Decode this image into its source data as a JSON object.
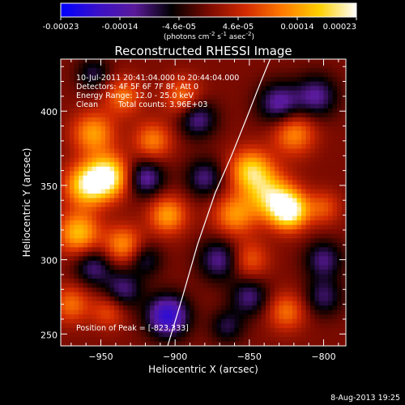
{
  "colorbar": {
    "tick_labels": [
      "-0.00023",
      "-0.00014",
      "-4.6e-05",
      "4.6e-05",
      "0.00014",
      "0.00023"
    ],
    "unit_label_main": "(photons cm",
    "unit_exp1": "-2",
    "unit_mid": " s",
    "unit_exp2": "-1",
    "unit_tail": " asec",
    "unit_exp3": "-2",
    "unit_close": ")",
    "colors": [
      "#0000ff",
      "#3a10c8",
      "#5a1a9a",
      "#000000",
      "#7a0a00",
      "#d22a00",
      "#ff7a00",
      "#ffd000",
      "#ffffff"
    ]
  },
  "annotations": {
    "time_range": "10-Jul-2011 20:41:04.000 to 20:44:04.000",
    "detectors": "Detectors: 4F 5F 6F 7F 8F, Att 0",
    "energy": "Energy Range: 12.0 - 25.0 keV",
    "clean": "Clean",
    "counts": "Total counts: 3.96E+03",
    "peak": "Position of Peak = [-823,333]"
  },
  "footer": {
    "date": "8-Aug-2013 19:25"
  },
  "chart_data": {
    "type": "heatmap",
    "title": "Reconstructed RHESSI Image",
    "xlabel": "Heliocentric X (arcsec)",
    "ylabel": "Heliocentric Y (arcsec)",
    "xlim": [
      -977,
      -785
    ],
    "ylim": [
      242,
      435
    ],
    "x_ticks": [
      -950,
      -900,
      -850,
      -800
    ],
    "y_ticks": [
      250,
      300,
      350,
      400
    ],
    "x_tick_labels": [
      "−950",
      "−900",
      "−850",
      "−800"
    ],
    "y_tick_labels": [
      "250",
      "300",
      "350",
      "400"
    ],
    "peak": {
      "x": -823,
      "y": 333
    },
    "limb_curve": [
      [
        -905,
        242
      ],
      [
        -895,
        275
      ],
      [
        -885,
        310
      ],
      [
        -873,
        345
      ],
      [
        -862,
        370
      ],
      [
        -852,
        395
      ],
      [
        -843,
        418
      ],
      [
        -836,
        435
      ]
    ],
    "blobs": [
      {
        "x": -823,
        "y": 333,
        "a": 1.0,
        "s": 9
      },
      {
        "x": -836,
        "y": 343,
        "a": 0.7,
        "s": 11
      },
      {
        "x": -849,
        "y": 360,
        "a": 0.75,
        "s": 10
      },
      {
        "x": -820,
        "y": 385,
        "a": 0.55,
        "s": 10
      },
      {
        "x": -860,
        "y": 330,
        "a": 0.55,
        "s": 10
      },
      {
        "x": -850,
        "y": 300,
        "a": 0.4,
        "s": 9
      },
      {
        "x": -825,
        "y": 265,
        "a": 0.45,
        "s": 9
      },
      {
        "x": -800,
        "y": 335,
        "a": 0.35,
        "s": 8
      },
      {
        "x": -945,
        "y": 356,
        "a": 0.95,
        "s": 10
      },
      {
        "x": -960,
        "y": 350,
        "a": 0.8,
        "s": 10
      },
      {
        "x": -955,
        "y": 385,
        "a": 0.6,
        "s": 10
      },
      {
        "x": -965,
        "y": 318,
        "a": 0.7,
        "s": 10
      },
      {
        "x": -935,
        "y": 310,
        "a": 0.55,
        "s": 9
      },
      {
        "x": -905,
        "y": 330,
        "a": 0.6,
        "s": 9
      },
      {
        "x": -915,
        "y": 380,
        "a": 0.5,
        "s": 9
      },
      {
        "x": -895,
        "y": 410,
        "a": 0.45,
        "s": 9
      },
      {
        "x": -935,
        "y": 410,
        "a": 0.45,
        "s": 9
      },
      {
        "x": -970,
        "y": 270,
        "a": 0.45,
        "s": 9
      },
      {
        "x": -945,
        "y": 265,
        "a": 0.35,
        "s": 8
      },
      {
        "x": -920,
        "y": 355,
        "a": -0.55,
        "s": 9
      },
      {
        "x": -885,
        "y": 395,
        "a": -0.5,
        "s": 9
      },
      {
        "x": -880,
        "y": 355,
        "a": -0.45,
        "s": 9
      },
      {
        "x": -870,
        "y": 300,
        "a": -0.5,
        "s": 10
      },
      {
        "x": -905,
        "y": 262,
        "a": -0.8,
        "s": 10
      },
      {
        "x": -955,
        "y": 295,
        "a": -0.45,
        "s": 9
      },
      {
        "x": -935,
        "y": 280,
        "a": -0.45,
        "s": 9
      },
      {
        "x": -850,
        "y": 275,
        "a": -0.45,
        "s": 9
      },
      {
        "x": -800,
        "y": 300,
        "a": -0.45,
        "s": 9
      },
      {
        "x": -800,
        "y": 275,
        "a": -0.4,
        "s": 9
      },
      {
        "x": -830,
        "y": 405,
        "a": -0.55,
        "s": 10
      },
      {
        "x": -805,
        "y": 410,
        "a": -0.5,
        "s": 10
      },
      {
        "x": -865,
        "y": 255,
        "a": -0.35,
        "s": 8
      },
      {
        "x": -920,
        "y": 300,
        "a": -0.35,
        "s": 8
      },
      {
        "x": -955,
        "y": 425,
        "a": -0.35,
        "s": 8
      }
    ]
  }
}
